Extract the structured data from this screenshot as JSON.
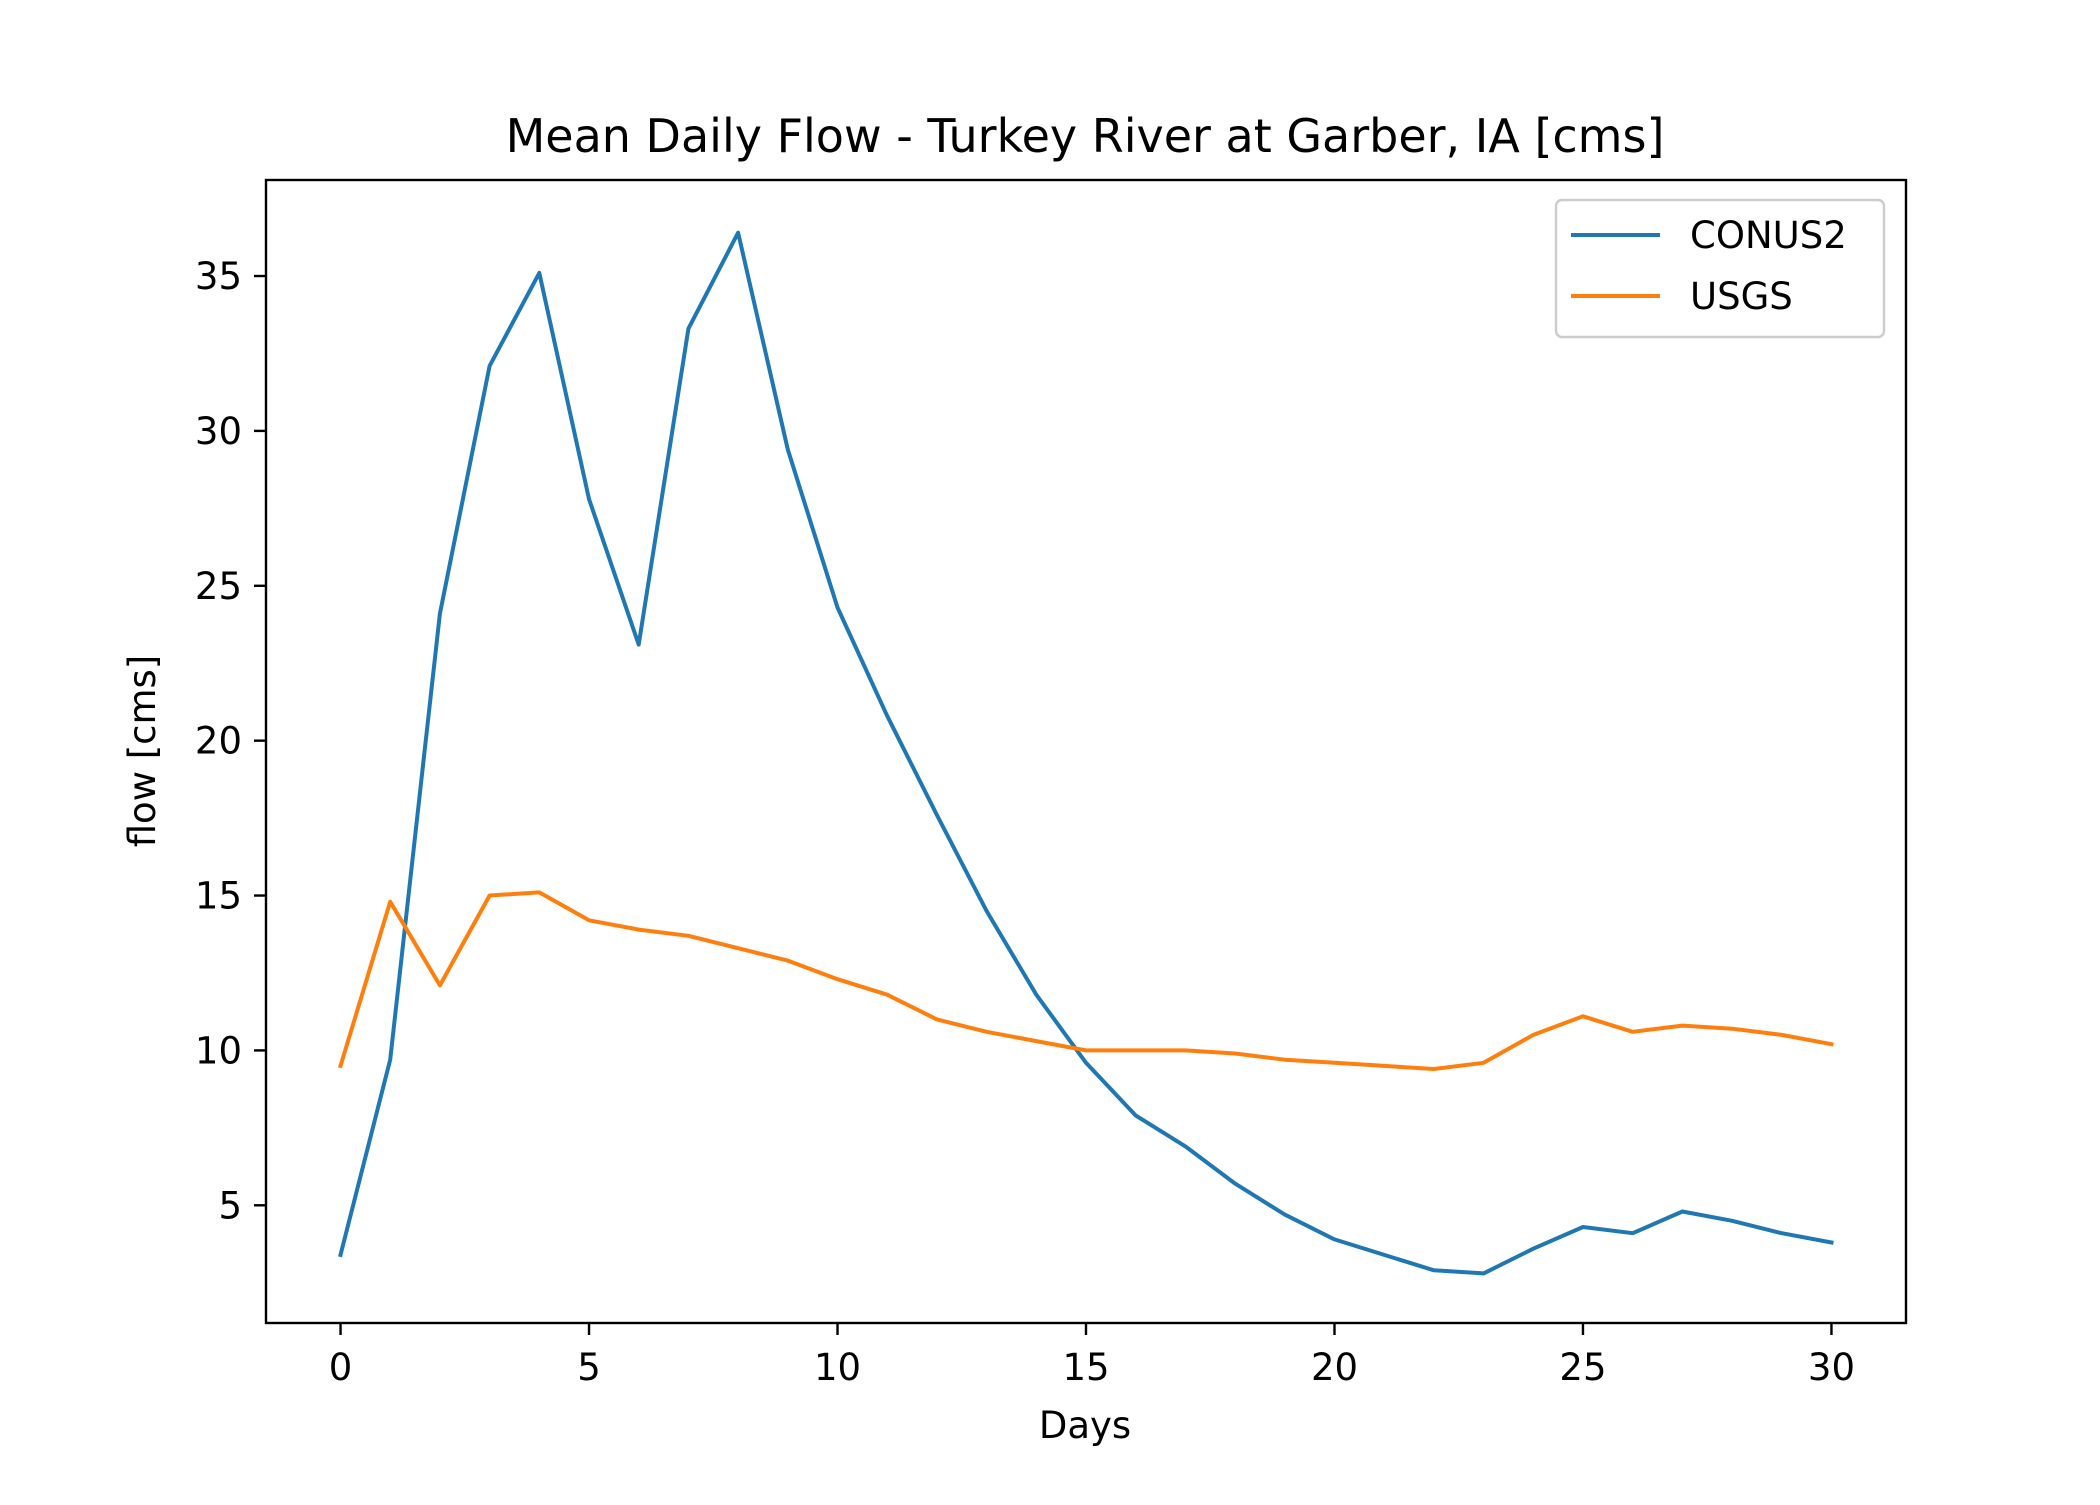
{
  "chart_data": {
    "type": "line",
    "title": "Mean Daily Flow - Turkey River at Garber, IA [cms]",
    "xlabel": "Days",
    "ylabel": "flow [cms]",
    "xlim": [
      -1.5,
      31.5
    ],
    "ylim": [
      1.2,
      38.1
    ],
    "x_ticks": [
      0,
      5,
      10,
      15,
      20,
      25,
      30
    ],
    "y_ticks": [
      5,
      10,
      15,
      20,
      25,
      30,
      35
    ],
    "grid": false,
    "legend_position": "upper right",
    "x": [
      0,
      1,
      2,
      3,
      4,
      5,
      6,
      7,
      8,
      9,
      10,
      11,
      12,
      13,
      14,
      15,
      16,
      17,
      18,
      19,
      20,
      21,
      22,
      23,
      24,
      25,
      26,
      27,
      28,
      29,
      30
    ],
    "series": [
      {
        "name": "CONUS2",
        "color": "#1f77b4",
        "values": [
          3.4,
          9.7,
          24.1,
          32.1,
          35.1,
          27.8,
          23.1,
          33.3,
          36.4,
          29.4,
          24.3,
          20.8,
          17.6,
          14.5,
          11.8,
          9.6,
          7.9,
          6.9,
          5.7,
          4.7,
          3.9,
          3.4,
          2.9,
          2.8,
          3.6,
          4.3,
          4.1,
          4.8,
          4.5,
          4.1,
          3.8
        ]
      },
      {
        "name": "USGS",
        "color": "#ff7f0e",
        "values": [
          9.5,
          14.8,
          12.1,
          15.0,
          15.1,
          14.2,
          13.9,
          13.7,
          13.3,
          12.9,
          12.3,
          11.8,
          11.0,
          10.6,
          10.3,
          10.0,
          10.0,
          10.0,
          9.9,
          9.7,
          9.6,
          9.5,
          9.4,
          9.6,
          10.5,
          11.1,
          10.6,
          10.8,
          10.7,
          10.5,
          10.2
        ]
      }
    ]
  }
}
